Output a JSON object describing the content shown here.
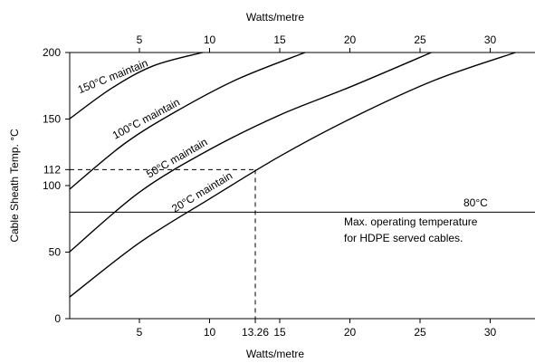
{
  "chart_data": {
    "type": "line",
    "xlabel": "Watts/metre",
    "x2label": "Watts/metre",
    "ylabel": "Cable Sheath Temp. °C",
    "xlim": [
      0,
      33.5
    ],
    "ylim": [
      0,
      200
    ],
    "xticks": [
      5,
      10,
      15,
      20,
      25,
      30
    ],
    "yticks": [
      0,
      50,
      100,
      112,
      150,
      200
    ],
    "series": [
      {
        "name": "150°C maintain",
        "points": [
          [
            0,
            150
          ],
          [
            3,
            173
          ],
          [
            6,
            190
          ],
          [
            9.5,
            200
          ]
        ]
      },
      {
        "name": "100°C maintain",
        "points": [
          [
            0,
            97
          ],
          [
            4,
            132
          ],
          [
            8,
            158
          ],
          [
            12,
            180
          ],
          [
            16.8,
            200
          ]
        ]
      },
      {
        "name": "50°C maintain",
        "points": [
          [
            0,
            50
          ],
          [
            5,
            95
          ],
          [
            10,
            127
          ],
          [
            15,
            153
          ],
          [
            20,
            174
          ],
          [
            25.8,
            200
          ]
        ]
      },
      {
        "name": "20°C maintain",
        "points": [
          [
            0,
            16
          ],
          [
            5,
            57
          ],
          [
            10,
            90
          ],
          [
            15,
            122
          ],
          [
            20,
            150
          ],
          [
            26,
            179
          ],
          [
            31.8,
            200
          ]
        ]
      }
    ],
    "reference_line": {
      "y": 80,
      "label": "80°C",
      "note": [
        "Max. operating temperature",
        "for HDPE served cables."
      ]
    },
    "marker": {
      "x": 13.26,
      "y": 112,
      "xlabel": "13.26",
      "ylabel": "112"
    }
  }
}
